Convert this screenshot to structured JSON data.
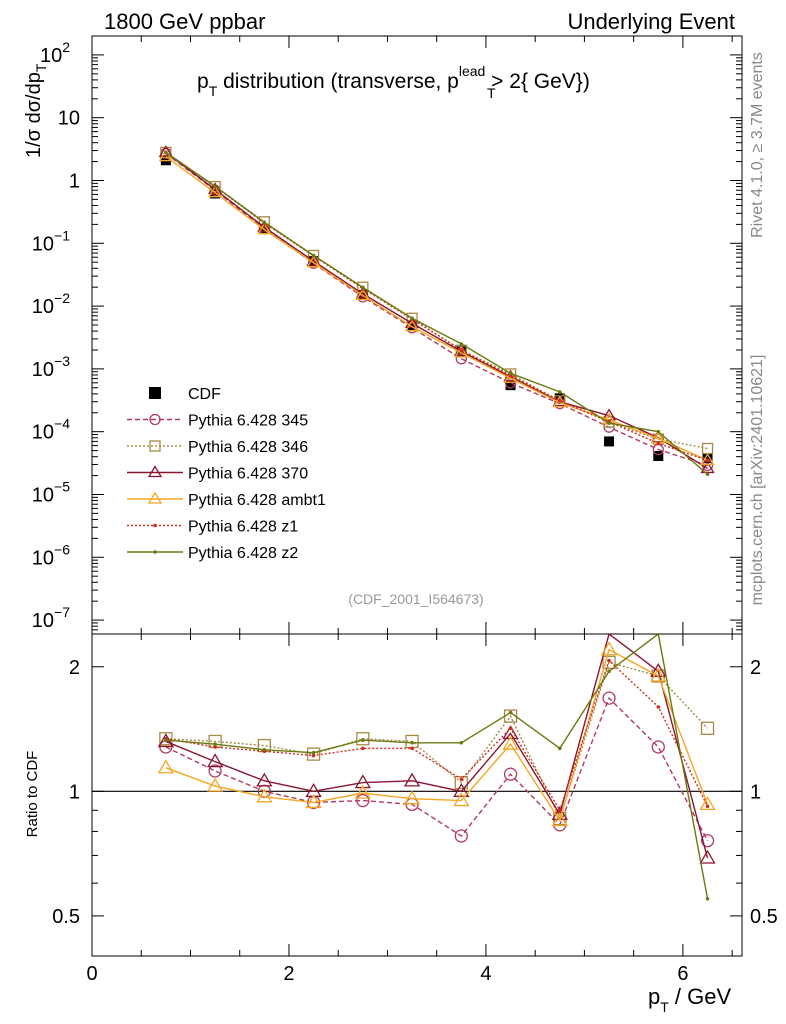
{
  "header": {
    "left": "1800 GeV ppbar",
    "right": "Underlying Event",
    "rivet": "Rivet 4.1.0, ≥ 3.7M events",
    "mcplots": "mcplots.cern.ch [arXiv:2401.10621]"
  },
  "chart_data": [
    {
      "type": "line",
      "panel": "main",
      "title": "pT distribution (transverse, pT lead > 2{ GeV})",
      "title_parts": {
        "p": "p",
        "sub": "T",
        "mid": " distribution (transverse, p",
        "sup": "lead",
        "end": " > 2{ GeV})"
      },
      "analysis_id": "(CDF_2001_I564673)",
      "ylabel": {
        "a": "1/σ  dσ/dp",
        "sub": "T"
      },
      "yscale": "log",
      "ylim": [
        6e-08,
        200
      ],
      "xlim": [
        0,
        6.6
      ],
      "y_tick_labels": [
        {
          "value": 1e-07,
          "base": "10",
          "exp": "−7"
        },
        {
          "value": 1e-06,
          "base": "10",
          "exp": "−6"
        },
        {
          "value": 1e-05,
          "base": "10",
          "exp": "−5"
        },
        {
          "value": 0.0001,
          "base": "10",
          "exp": "−4"
        },
        {
          "value": 0.001,
          "base": "10",
          "exp": "−3"
        },
        {
          "value": 0.01,
          "base": "10",
          "exp": "−2"
        },
        {
          "value": 0.1,
          "base": "10",
          "exp": "−1"
        },
        {
          "value": 1,
          "base": "1",
          "exp": ""
        },
        {
          "value": 10,
          "base": "10",
          "exp": ""
        },
        {
          "value": 100,
          "base": "10",
          "exp": "2"
        }
      ],
      "x": [
        0.75,
        1.25,
        1.75,
        2.25,
        2.75,
        3.25,
        3.75,
        4.25,
        4.75,
        5.25,
        5.75,
        6.25
      ],
      "series": [
        {
          "name": "CDF",
          "color": "#000000",
          "style": "data",
          "values": [
            2.1,
            0.62,
            0.17,
            0.052,
            0.015,
            0.0049,
            0.0019,
            0.00055,
            0.00034,
            7e-05,
            4.1e-05,
            3.8e-05
          ]
        },
        {
          "name": "Pythia 6.428 345",
          "color": "#b23a5e",
          "style": "dashed",
          "marker": "circle",
          "values": [
            2.7,
            0.7,
            0.17,
            0.048,
            0.014,
            0.0045,
            0.00145,
            0.0006,
            0.00028,
            0.000118,
            5.2e-05,
            2.9e-05
          ]
        },
        {
          "name": "Pythia 6.428 346",
          "color": "#a88a44",
          "style": "dotted",
          "marker": "square",
          "values": [
            2.8,
            0.8,
            0.22,
            0.064,
            0.02,
            0.0064,
            0.00198,
            0.00083,
            0.00031,
            0.000142,
            7.6e-05,
            5.4e-05
          ]
        },
        {
          "name": "Pythia 6.428 370",
          "color": "#8b1530",
          "style": "solid",
          "marker": "triangle",
          "values": [
            2.8,
            0.72,
            0.18,
            0.052,
            0.0157,
            0.0053,
            0.0019,
            0.00075,
            0.0003,
            0.00018,
            8e-05,
            2.6e-05
          ]
        },
        {
          "name": "Pythia 6.428 ambt1",
          "color": "#f5a623",
          "style": "solid",
          "marker": "triangle",
          "values": [
            2.4,
            0.64,
            0.165,
            0.049,
            0.0148,
            0.0047,
            0.0018,
            0.00071,
            0.00029,
            0.000154,
            7.8e-05,
            3.5e-05
          ]
        },
        {
          "name": "Pythia 6.428 z1",
          "color": "#d42b1e",
          "style": "dotted",
          "marker": "dot",
          "values": [
            2.8,
            0.8,
            0.21,
            0.063,
            0.019,
            0.0062,
            0.002,
            0.00078,
            0.00031,
            0.000145,
            6.5e-05,
            3.5e-05
          ]
        },
        {
          "name": "Pythia 6.428 z2",
          "color": "#6b7a10",
          "style": "solid",
          "marker": "dot",
          "values": [
            2.8,
            0.81,
            0.215,
            0.064,
            0.0198,
            0.0064,
            0.0025,
            0.00085,
            0.00043,
            0.000137,
            0.0001,
            2.1e-05
          ]
        }
      ]
    },
    {
      "type": "line",
      "panel": "ratio",
      "ylabel": "Ratio to CDF",
      "yscale": "log",
      "ylim": [
        0.4,
        2.4
      ],
      "xlabel": {
        "p": "p",
        "sub": "T",
        "rest": " / GeV"
      },
      "x_ticks": [
        0,
        2,
        4,
        6
      ],
      "y_ticks": [
        0.5,
        1,
        2
      ],
      "y_tick_labels": [
        "0.5",
        "1",
        "2"
      ],
      "x": [
        0.75,
        1.25,
        1.75,
        2.25,
        2.75,
        3.25,
        3.75,
        4.25,
        4.75,
        5.25,
        5.75,
        6.25
      ],
      "series": [
        {
          "name": "Pythia 6.428 345",
          "values": [
            1.28,
            1.12,
            1.0,
            0.94,
            0.95,
            0.93,
            0.78,
            1.1,
            0.83,
            1.68,
            1.28,
            0.76
          ]
        },
        {
          "name": "Pythia 6.428 346",
          "values": [
            1.34,
            1.32,
            1.29,
            1.23,
            1.34,
            1.32,
            1.05,
            1.52,
            0.86,
            2.05,
            1.9,
            1.42
          ]
        },
        {
          "name": "Pythia 6.428 370",
          "values": [
            1.32,
            1.18,
            1.06,
            1.0,
            1.05,
            1.06,
            1.0,
            1.38,
            0.88,
            2.6,
            1.95,
            0.69
          ]
        },
        {
          "name": "Pythia 6.428 ambt1",
          "values": [
            1.14,
            1.03,
            0.97,
            0.94,
            0.99,
            0.96,
            0.95,
            1.3,
            0.85,
            2.2,
            1.9,
            0.93
          ]
        },
        {
          "name": "Pythia 6.428 z1",
          "values": [
            1.34,
            1.28,
            1.25,
            1.22,
            1.27,
            1.27,
            1.07,
            1.42,
            0.9,
            2.07,
            1.6,
            0.92
          ]
        },
        {
          "name": "Pythia 6.428 z2",
          "values": [
            1.33,
            1.3,
            1.26,
            1.24,
            1.33,
            1.31,
            1.31,
            1.55,
            1.27,
            1.95,
            2.5,
            0.55
          ]
        }
      ]
    }
  ]
}
